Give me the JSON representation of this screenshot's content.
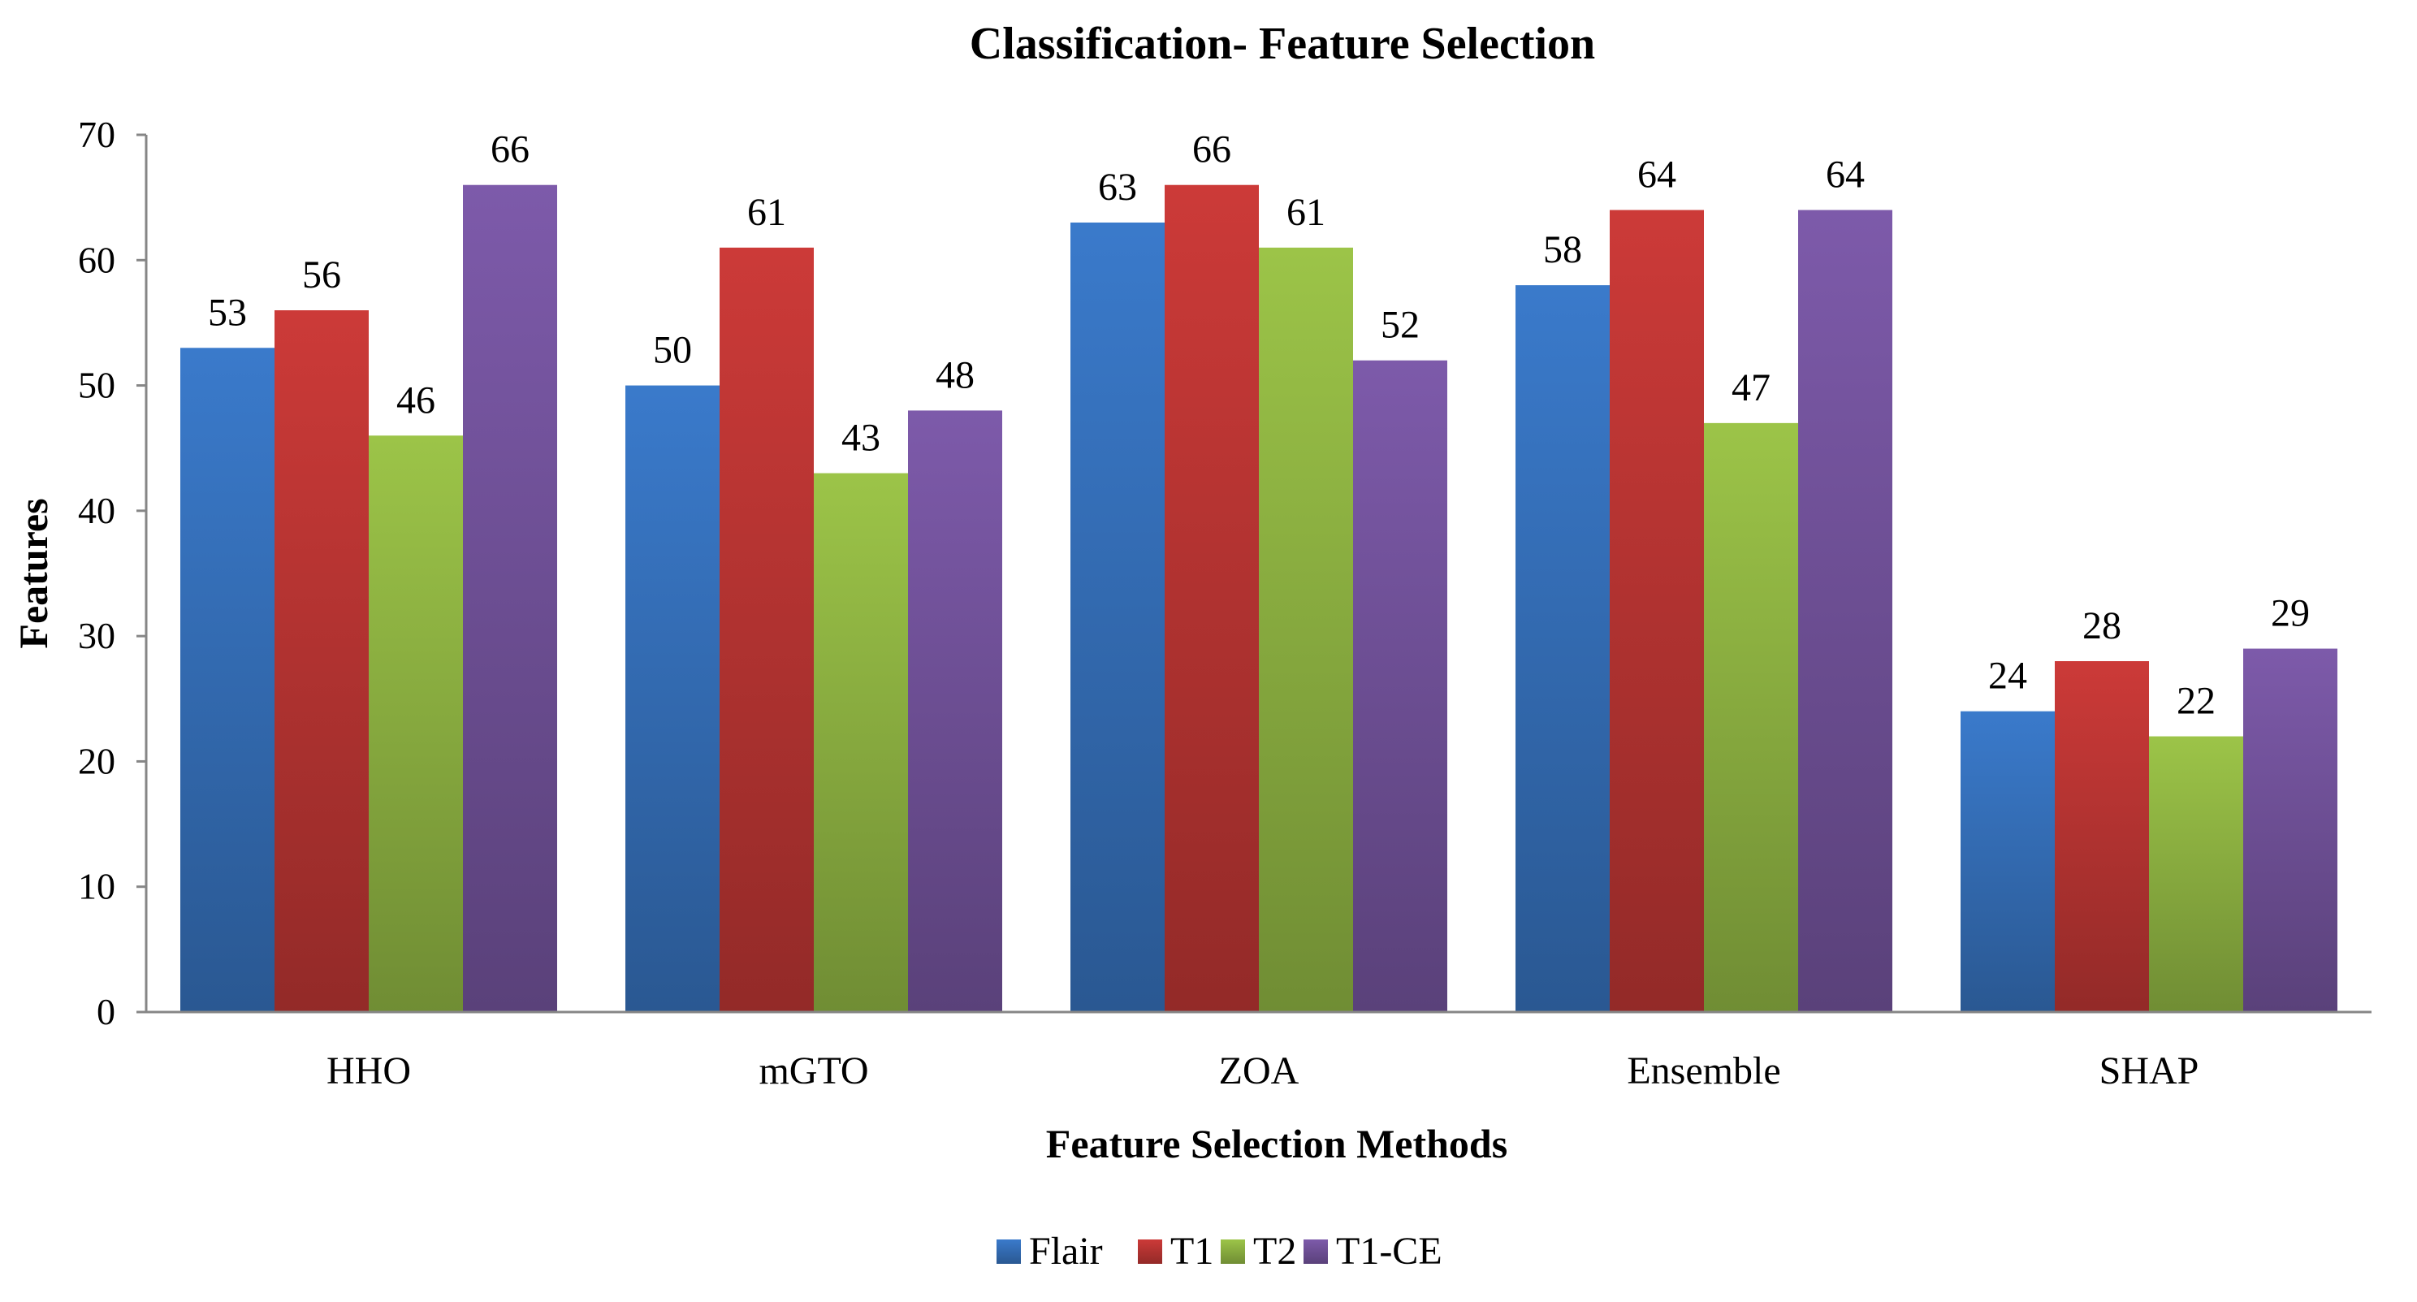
{
  "chart_data": {
    "type": "bar",
    "title": "Classification- Feature Selection",
    "xlabel": "Feature Selection Methods",
    "ylabel": "Features",
    "ylim": [
      0,
      70
    ],
    "yticks": [
      "0",
      "10",
      "20",
      "30",
      "40",
      "50",
      "60",
      "70"
    ],
    "categories": [
      "HHO",
      "mGTO",
      "ZOA",
      "Ensemble",
      "SHAP"
    ],
    "series": [
      {
        "name": "Flair",
        "color": "#3a7acb",
        "values": [
          53,
          50,
          63,
          58,
          24
        ]
      },
      {
        "name": "T1",
        "color": "#cc3a38",
        "values": [
          56,
          61,
          66,
          64,
          28
        ]
      },
      {
        "name": "T2",
        "color": "#9cc448",
        "values": [
          46,
          43,
          61,
          47,
          22
        ]
      },
      {
        "name": "T1-CE",
        "color": "#7d5aaa",
        "values": [
          66,
          48,
          52,
          64,
          29
        ]
      }
    ],
    "grid": false,
    "legend_position": "bottom"
  }
}
